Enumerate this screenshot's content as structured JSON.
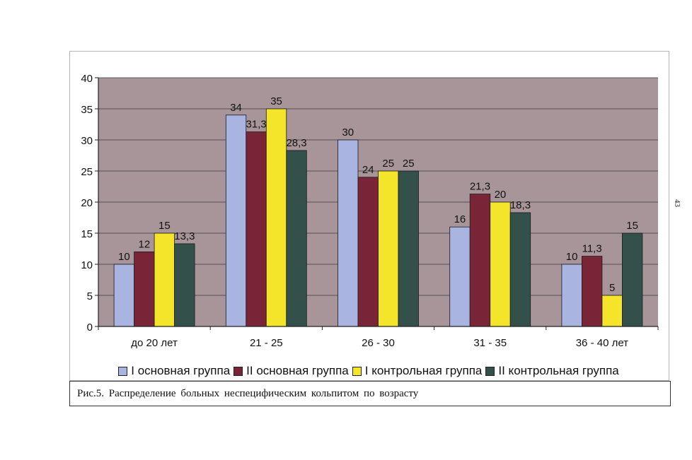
{
  "page_number": "43",
  "caption": "Рис.5.  Распределение  больных  неспецифическим  кольпитом  по  возрасту",
  "chart_data": {
    "type": "bar",
    "categories": [
      "до 20 лет",
      "21 - 25",
      "26 - 30",
      "31 - 35",
      "36 - 40 лет"
    ],
    "ylim": [
      0,
      40
    ],
    "yticks": [
      "0",
      "5",
      "10",
      "15",
      "20",
      "25",
      "30",
      "35",
      "40"
    ],
    "grid": true,
    "legend_position": "bottom",
    "plot_background": "#a8959a",
    "series": [
      {
        "name": "I основная группа",
        "color": "#a9b4e0",
        "values": [
          10,
          34,
          30,
          16,
          10
        ],
        "labels": [
          "10",
          "34",
          "30",
          "16",
          "10"
        ]
      },
      {
        "name": "II основная группа",
        "color": "#7a2438",
        "values": [
          12,
          31.3,
          24,
          21.3,
          11.3
        ],
        "labels": [
          "12",
          "31,3",
          "24",
          "21,3",
          "11,3"
        ]
      },
      {
        "name": "I контрольная группа",
        "color": "#f5e52a",
        "values": [
          15,
          35,
          25,
          20,
          5
        ],
        "labels": [
          "15",
          "35",
          "25",
          "20",
          "5"
        ]
      },
      {
        "name": "II контрольная группа",
        "color": "#34504b",
        "values": [
          13.3,
          28.3,
          25,
          18.3,
          15
        ],
        "labels": [
          "13,3",
          "28,3",
          "25",
          "18,3",
          "15"
        ]
      }
    ]
  }
}
